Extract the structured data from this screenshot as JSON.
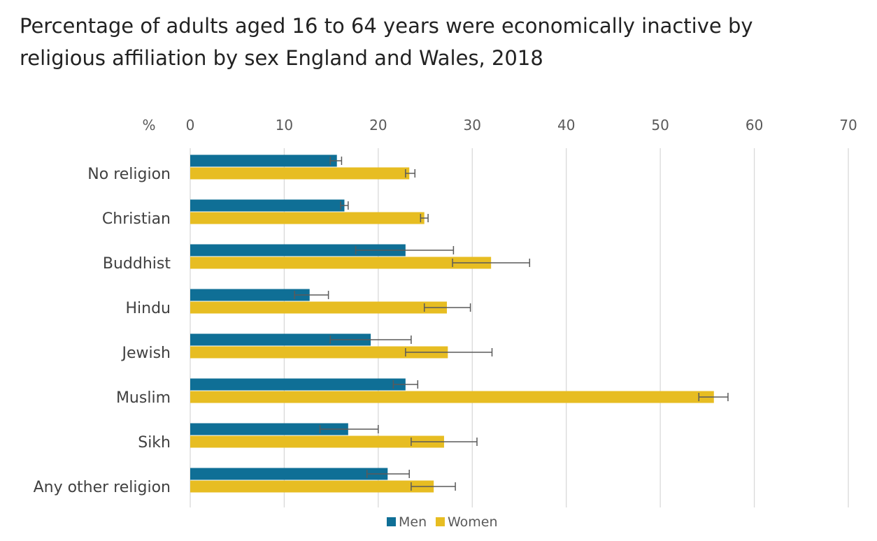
{
  "title": "Percentage of adults aged 16 to 64 years were economically inactive by religious affiliation by sex England and Wales, 2018",
  "chart_data": {
    "type": "bar",
    "orientation": "horizontal",
    "unit_label": "%",
    "xlim": [
      0,
      70
    ],
    "x_ticks": [
      0,
      10,
      20,
      30,
      40,
      50,
      60,
      70
    ],
    "grid": true,
    "legend_position": "bottom",
    "categories": [
      "No religion",
      "Christian",
      "Buddhist",
      "Hindu",
      "Jewish",
      "Muslim",
      "Sikh",
      "Any other religion"
    ],
    "series": [
      {
        "name": "Men",
        "color": "#0F6F96",
        "values": [
          15.6,
          16.4,
          22.9,
          12.7,
          19.2,
          22.9,
          16.8,
          21.0
        ],
        "ci_low": [
          14.9,
          16.0,
          17.6,
          11.1,
          14.9,
          21.6,
          13.8,
          18.8
        ],
        "ci_high": [
          16.1,
          16.8,
          28.0,
          14.7,
          23.5,
          24.2,
          20.0,
          23.3
        ]
      },
      {
        "name": "Women",
        "color": "#E7BD22",
        "values": [
          23.3,
          24.9,
          32.0,
          27.3,
          27.4,
          55.7,
          27.0,
          25.9
        ],
        "ci_low": [
          22.9,
          24.5,
          27.9,
          24.9,
          22.9,
          54.1,
          23.5,
          23.5
        ],
        "ci_high": [
          23.9,
          25.3,
          36.1,
          29.8,
          32.1,
          57.2,
          30.5,
          28.2
        ]
      }
    ]
  }
}
